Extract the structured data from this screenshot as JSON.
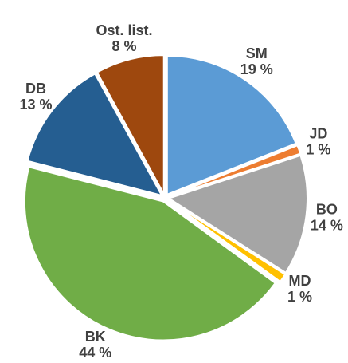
{
  "chart_data": {
    "type": "pie",
    "categories": [
      "SM",
      "JD",
      "BO",
      "MD",
      "BK",
      "DB",
      "Ost. list."
    ],
    "values": [
      19,
      1,
      14,
      1,
      44,
      13,
      8
    ],
    "value_labels": [
      "19 %",
      "1 %",
      "14 %",
      "1 %",
      "44 %",
      "13 %",
      "8 %"
    ],
    "colors": [
      "#5b9bd5",
      "#ed7d31",
      "#a5a5a5",
      "#ffc000",
      "#70ad47",
      "#255e91",
      "#9e480e"
    ]
  }
}
